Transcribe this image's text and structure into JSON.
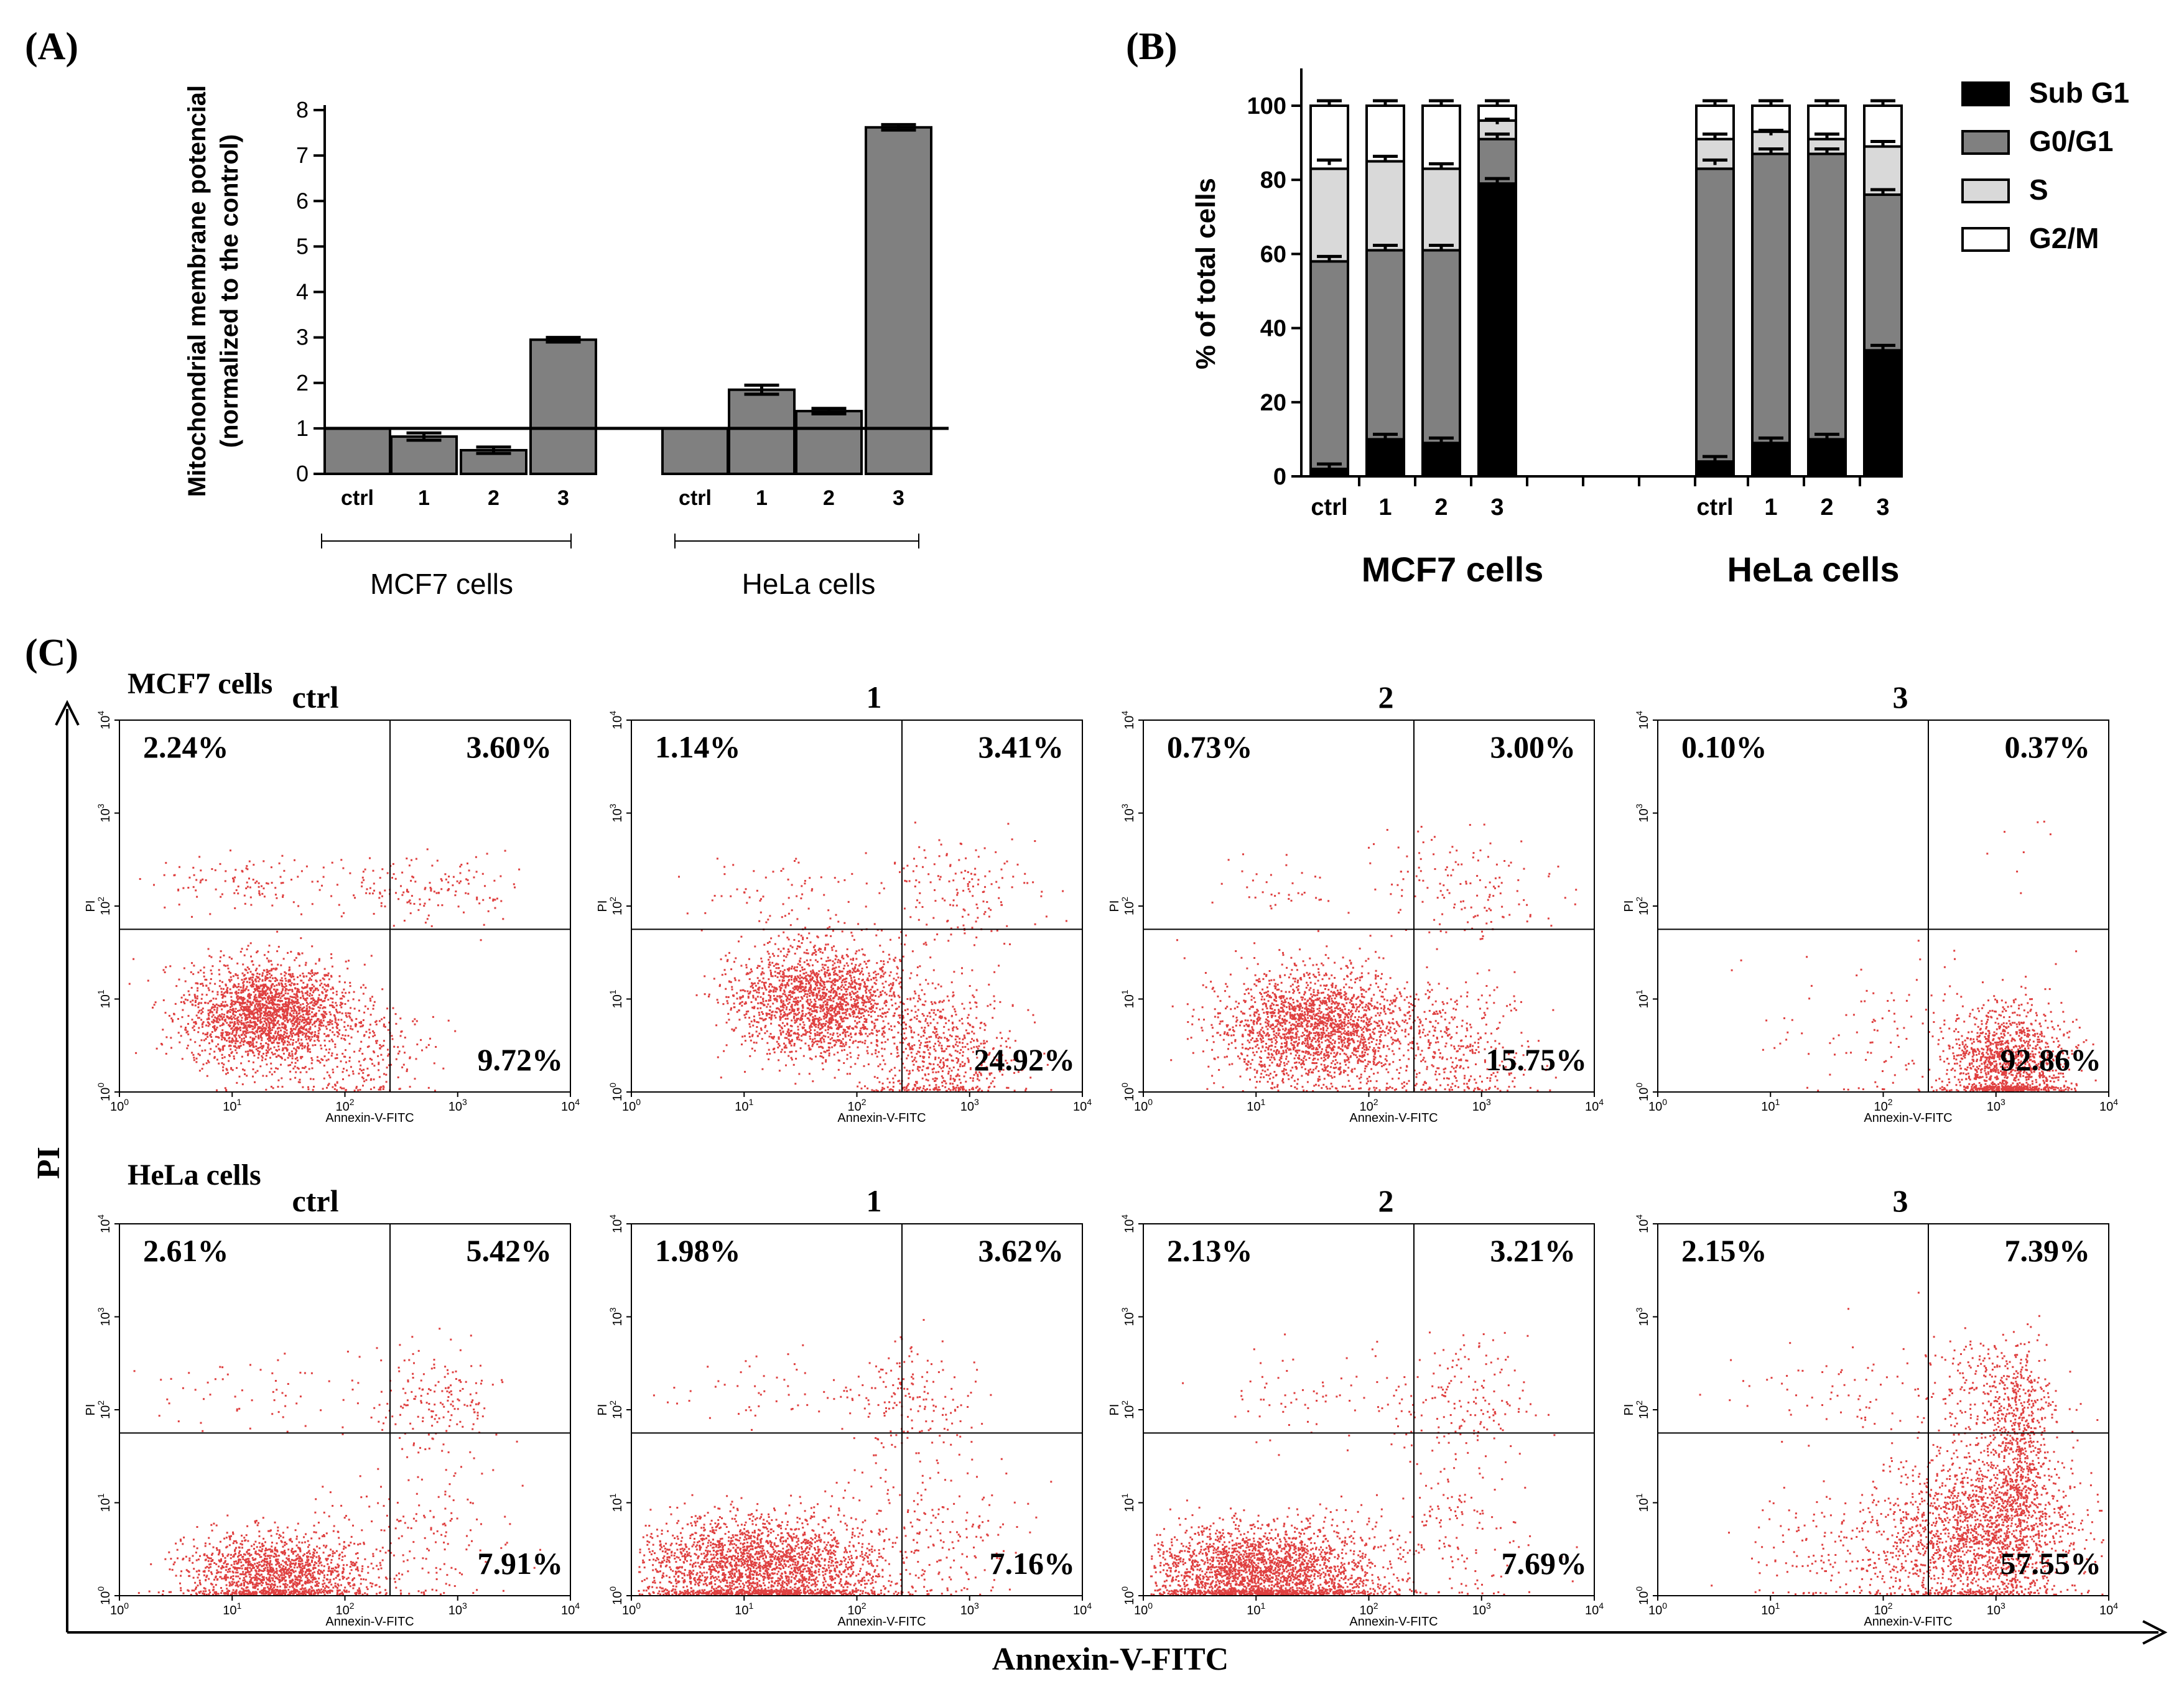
{
  "panels": {
    "a": {
      "label": "(A)"
    },
    "b": {
      "label": "(B)"
    },
    "c": {
      "label": "(C)"
    }
  },
  "chart_data": [
    {
      "id": "A",
      "type": "bar",
      "ylabel_line1": "Mitochondrial membrane potencial",
      "ylabel_line2": "(normalized to the control)",
      "ylim": [
        0,
        8
      ],
      "yticks": [
        "0",
        "1",
        "2",
        "3",
        "4",
        "5",
        "6",
        "7",
        "8"
      ],
      "reference_line": 1,
      "groups": [
        {
          "name": "MCF7 cells",
          "categories": [
            "ctrl",
            "1",
            "2",
            "3"
          ],
          "values": [
            1.0,
            0.82,
            0.52,
            2.95
          ],
          "errors": [
            0,
            0.08,
            0.07,
            0.05
          ]
        },
        {
          "name": "HeLa cells",
          "categories": [
            "ctrl",
            "1",
            "2",
            "3"
          ],
          "values": [
            1.0,
            1.85,
            1.38,
            7.62
          ],
          "errors": [
            0,
            0.1,
            0.06,
            0.06
          ]
        }
      ]
    },
    {
      "id": "B",
      "type": "bar",
      "stacked": true,
      "ylabel": "% of total cells",
      "ylim": [
        0,
        100
      ],
      "yticks": [
        "0",
        "20",
        "40",
        "60",
        "80",
        "100"
      ],
      "legend": [
        "Sub G1",
        "G0/G1",
        "S",
        "G2/M"
      ],
      "legend_colors": [
        "#000000",
        "#808080",
        "#d9d9d9",
        "#ffffff"
      ],
      "groups": [
        {
          "name": "MCF7 cells",
          "categories": [
            "ctrl",
            "1",
            "2",
            "3"
          ],
          "series": [
            {
              "name": "Sub G1",
              "values": [
                2,
                10,
                9,
                79
              ]
            },
            {
              "name": "G0/G1",
              "values": [
                56,
                51,
                52,
                12
              ]
            },
            {
              "name": "S",
              "values": [
                25,
                24,
                22,
                5
              ]
            },
            {
              "name": "G2/M",
              "values": [
                17,
                15,
                17,
                4
              ]
            }
          ],
          "error_tops": [
            [
              2,
              10,
              9,
              79
            ],
            [
              58,
              61,
              61,
              91
            ],
            [
              84,
              85,
              83,
              95
            ],
            [
              100,
              100,
              100,
              100
            ]
          ]
        },
        {
          "name": "HeLa cells",
          "categories": [
            "ctrl",
            "1",
            "2",
            "3"
          ],
          "series": [
            {
              "name": "Sub G1",
              "values": [
                4,
                9,
                10,
                34
              ]
            },
            {
              "name": "G0/G1",
              "values": [
                79,
                78,
                77,
                42
              ]
            },
            {
              "name": "S",
              "values": [
                8,
                6,
                4,
                13
              ]
            },
            {
              "name": "G2/M",
              "values": [
                9,
                7,
                9,
                11
              ]
            }
          ],
          "error_tops": [
            [
              4,
              9,
              10,
              34
            ],
            [
              84,
              87,
              87,
              76
            ],
            [
              91,
              92,
              91,
              89
            ],
            [
              100,
              100,
              100,
              100
            ]
          ]
        }
      ]
    },
    {
      "id": "C",
      "type": "scatter",
      "xlabel": "Annexin-V-FITC",
      "ylabel": "PI",
      "axis_label": "Annexin-V-FITC",
      "axis_label_y": "PI",
      "ticks": [
        "10",
        "10",
        "10",
        "10",
        "10"
      ],
      "tick_exps": [
        "0",
        "1",
        "2",
        "3",
        "4"
      ],
      "quadrant_divider": {
        "x_log": 2.4,
        "y_log": 1.75
      },
      "rows": [
        {
          "name": "MCF7 cells",
          "plots": [
            {
              "title": "ctrl",
              "ul": "2.24%",
              "ur": "3.60%",
              "lr": "9.72%"
            },
            {
              "title": "1",
              "ul": "1.14%",
              "ur": "3.41%",
              "lr": "24.92%"
            },
            {
              "title": "2",
              "ul": "0.73%",
              "ur": "3.00%",
              "lr": "15.75%"
            },
            {
              "title": "3",
              "ul": "0.10%",
              "ur": "0.37%",
              "lr": "92.86%"
            }
          ]
        },
        {
          "name": "HeLa cells",
          "plots": [
            {
              "title": "ctrl",
              "ul": "2.61%",
              "ur": "5.42%",
              "lr": "7.91%"
            },
            {
              "title": "1",
              "ul": "1.98%",
              "ur": "3.62%",
              "lr": "7.16%"
            },
            {
              "title": "2",
              "ul": "2.13%",
              "ur": "3.21%",
              "lr": "7.69%"
            },
            {
              "title": "3",
              "ul": "2.15%",
              "ur": "7.39%",
              "lr": "57.55%"
            }
          ]
        }
      ],
      "population_centers": [
        [
          [
            {
              "x": 1.3,
              "y": 0.85,
              "sx": 0.35,
              "sy": 0.28,
              "n": 2200
            },
            {
              "x": 2.1,
              "y": 0.4,
              "sx": 0.35,
              "sy": 0.3,
              "n": 250
            },
            {
              "x": 2.7,
              "y": 2.2,
              "sx": 0.45,
              "sy": 0.18,
              "n": 160
            },
            {
              "x": 1.1,
              "y": 2.25,
              "sx": 0.4,
              "sy": 0.15,
              "n": 100
            }
          ],
          [
            {
              "x": 1.65,
              "y": 1.0,
              "sx": 0.38,
              "sy": 0.3,
              "n": 1900
            },
            {
              "x": 2.7,
              "y": 0.45,
              "sx": 0.35,
              "sy": 0.35,
              "n": 650
            },
            {
              "x": 2.9,
              "y": 2.2,
              "sx": 0.35,
              "sy": 0.3,
              "n": 160
            },
            {
              "x": 1.2,
              "y": 2.2,
              "sx": 0.4,
              "sy": 0.2,
              "n": 60
            }
          ],
          [
            {
              "x": 1.5,
              "y": 0.7,
              "sx": 0.42,
              "sy": 0.3,
              "n": 2000
            },
            {
              "x": 2.7,
              "y": 0.45,
              "sx": 0.4,
              "sy": 0.35,
              "n": 400
            },
            {
              "x": 2.9,
              "y": 2.2,
              "sx": 0.4,
              "sy": 0.3,
              "n": 140
            },
            {
              "x": 1.2,
              "y": 2.2,
              "sx": 0.4,
              "sy": 0.2,
              "n": 40
            }
          ],
          [
            {
              "x": 3.1,
              "y": 0.3,
              "sx": 0.25,
              "sy": 0.3,
              "n": 1200
            },
            {
              "x": 2.2,
              "y": 0.6,
              "sx": 0.6,
              "sy": 0.45,
              "n": 150
            },
            {
              "x": 3.2,
              "y": 2.5,
              "sx": 0.15,
              "sy": 0.3,
              "n": 8
            }
          ]
        ],
        [
          [
            {
              "x": 1.4,
              "y": 0.25,
              "sx": 0.4,
              "sy": 0.22,
              "n": 1500
            },
            {
              "x": 2.8,
              "y": 2.1,
              "sx": 0.3,
              "sy": 0.3,
              "n": 180
            },
            {
              "x": 2.7,
              "y": 0.6,
              "sx": 0.4,
              "sy": 0.4,
              "n": 160
            },
            {
              "x": 1.0,
              "y": 2.2,
              "sx": 0.5,
              "sy": 0.2,
              "n": 60
            }
          ],
          [
            {
              "x": 1.15,
              "y": 0.3,
              "sx": 0.55,
              "sy": 0.28,
              "n": 2600
            },
            {
              "x": 2.5,
              "y": 2.1,
              "sx": 0.3,
              "sy": 0.3,
              "n": 160
            },
            {
              "x": 2.7,
              "y": 0.7,
              "sx": 0.4,
              "sy": 0.4,
              "n": 180
            },
            {
              "x": 1.2,
              "y": 2.2,
              "sx": 0.5,
              "sy": 0.2,
              "n": 60
            }
          ],
          [
            {
              "x": 1.05,
              "y": 0.25,
              "sx": 0.5,
              "sy": 0.25,
              "n": 2500
            },
            {
              "x": 2.8,
              "y": 2.1,
              "sx": 0.3,
              "sy": 0.35,
              "n": 160
            },
            {
              "x": 2.7,
              "y": 0.7,
              "sx": 0.4,
              "sy": 0.4,
              "n": 160
            },
            {
              "x": 1.5,
              "y": 2.2,
              "sx": 0.5,
              "sy": 0.25,
              "n": 70
            }
          ],
          [
            {
              "x": 2.9,
              "y": 0.7,
              "sx": 0.4,
              "sy": 0.45,
              "n": 1800
            },
            {
              "x": 3.2,
              "y": 1.6,
              "sx": 0.12,
              "sy": 0.55,
              "n": 500
            },
            {
              "x": 2.0,
              "y": 0.5,
              "sx": 0.6,
              "sy": 0.35,
              "n": 350
            },
            {
              "x": 2.9,
              "y": 2.2,
              "sx": 0.3,
              "sy": 0.3,
              "n": 250
            },
            {
              "x": 1.5,
              "y": 2.2,
              "sx": 0.5,
              "sy": 0.25,
              "n": 60
            }
          ]
        ]
      ]
    }
  ]
}
